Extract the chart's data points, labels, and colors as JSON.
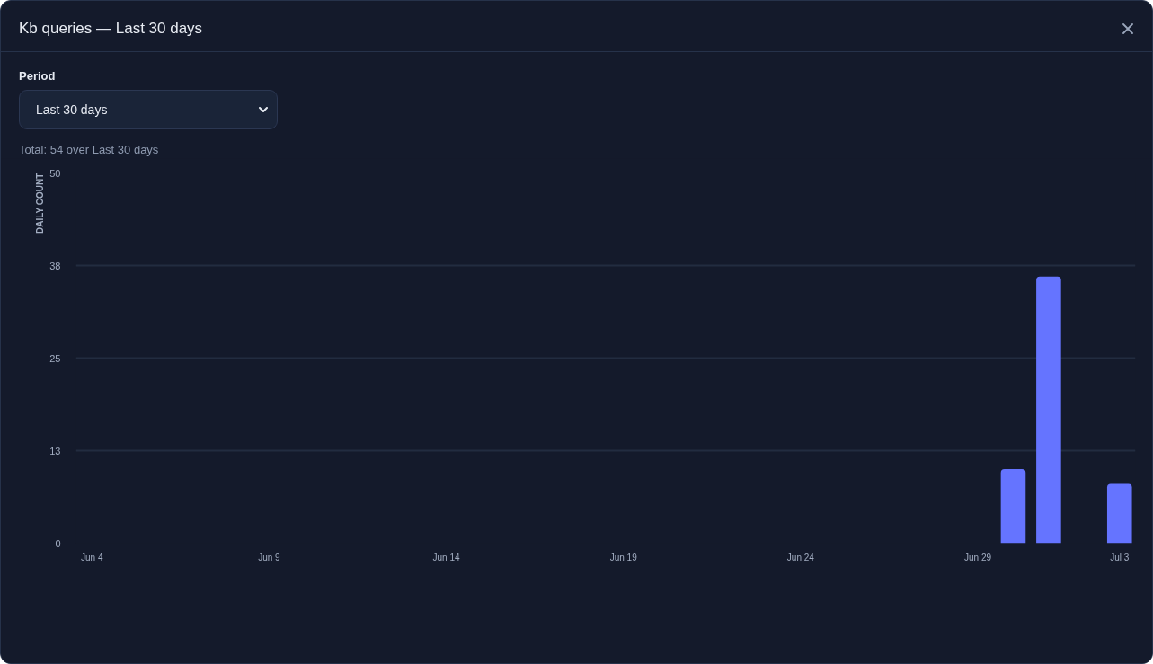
{
  "chart_data": {
    "type": "bar",
    "title": "Kb queries — Last 30 days",
    "subtitle": "Total: 54 over Last 30 days",
    "annotations": [
      "Period",
      "Last 30 days"
    ],
    "ylabel": "DAILY COUNT",
    "categories": [
      "Jun 4",
      null,
      null,
      null,
      null,
      "Jun 9",
      null,
      null,
      null,
      null,
      "Jun 14",
      null,
      null,
      null,
      null,
      "Jun 19",
      null,
      null,
      null,
      null,
      "Jun 24",
      null,
      null,
      null,
      null,
      "Jun 29",
      null,
      null,
      null,
      "Jul 3"
    ],
    "values": [
      0,
      0,
      0,
      0,
      0,
      0,
      0,
      0,
      0,
      0,
      0,
      0,
      0,
      0,
      0,
      0,
      0,
      0,
      0,
      0,
      0,
      0,
      0,
      0,
      0,
      0,
      10,
      36,
      0,
      8
    ],
    "color": "#6574ff",
    "ylim": [
      0,
      50
    ],
    "yticks": [
      0,
      {
        "value": 12.5,
        "label": "13"
      },
      25,
      {
        "value": 37.5,
        "label": "38"
      },
      50
    ],
    "grid": "y"
  }
}
